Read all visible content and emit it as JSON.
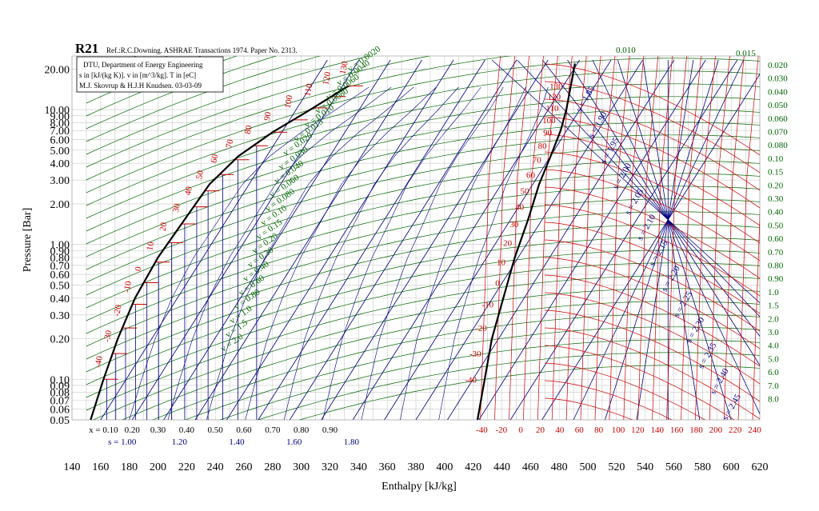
{
  "chart_data": {
    "type": "line",
    "title": "R21",
    "subtitle": "Ref.:R.C.Downing. ASHRAE Transactions 1974. Paper No. 2313.",
    "info_box": [
      "DTU, Department of Energy Engineering",
      "s in [kJ/(kg K)]. v in [m^3/kg]. T in [eC]",
      "M.J. Skovrup & H.J.H Knudsen. 03-03-09"
    ],
    "xlabel": "Enthalpy [kJ/kg]",
    "ylabel": "Pressure [Bar]",
    "xlim": [
      140,
      620
    ],
    "ylim": [
      0.05,
      25
    ],
    "y_scale": "log",
    "x_ticks": [
      140,
      160,
      180,
      200,
      220,
      240,
      260,
      280,
      300,
      320,
      340,
      360,
      380,
      400,
      420,
      440,
      460,
      480,
      500,
      520,
      540,
      560,
      580,
      600,
      620
    ],
    "y_ticks": [
      {
        "v": 20,
        "label": "20.00"
      },
      {
        "v": 10,
        "label": "10.00"
      },
      {
        "v": 9,
        "label": "9.00"
      },
      {
        "v": 8,
        "label": "8.00"
      },
      {
        "v": 7,
        "label": "7.00"
      },
      {
        "v": 6,
        "label": "6.00"
      },
      {
        "v": 5,
        "label": "5.00"
      },
      {
        "v": 4,
        "label": "4.00"
      },
      {
        "v": 3,
        "label": "3.00"
      },
      {
        "v": 2,
        "label": "2.00"
      },
      {
        "v": 1,
        "label": "1.00"
      },
      {
        "v": 0.9,
        "label": "0.90"
      },
      {
        "v": 0.8,
        "label": "0.80"
      },
      {
        "v": 0.7,
        "label": "0.70"
      },
      {
        "v": 0.6,
        "label": "0.60"
      },
      {
        "v": 0.5,
        "label": "0.50"
      },
      {
        "v": 0.4,
        "label": "0.40"
      },
      {
        "v": 0.3,
        "label": "0.30"
      },
      {
        "v": 0.2,
        "label": "0.20"
      },
      {
        "v": 0.1,
        "label": "0.10"
      },
      {
        "v": 0.09,
        "label": "0.09"
      },
      {
        "v": 0.08,
        "label": "0.08"
      },
      {
        "v": 0.07,
        "label": "0.07"
      },
      {
        "v": 0.06,
        "label": "0.06"
      },
      {
        "v": 0.05,
        "label": "0.05"
      }
    ],
    "saturation": {
      "liquid": [
        [
          153,
          0.05
        ],
        [
          162,
          0.1
        ],
        [
          172,
          0.2
        ],
        [
          184,
          0.4
        ],
        [
          200,
          0.8
        ],
        [
          218,
          1.5
        ],
        [
          236,
          2.8
        ],
        [
          256,
          4.5
        ],
        [
          280,
          6.8
        ],
        [
          305,
          9.8
        ],
        [
          333,
          15
        ]
      ],
      "vapor": [
        [
          423,
          0.05
        ],
        [
          428,
          0.1
        ],
        [
          433,
          0.2
        ],
        [
          441,
          0.4
        ],
        [
          449,
          0.8
        ],
        [
          458,
          1.5
        ],
        [
          466,
          2.8
        ],
        [
          474,
          4.5
        ],
        [
          481,
          7
        ],
        [
          485,
          10
        ],
        [
          491,
          22
        ]
      ]
    },
    "quality_lines": {
      "labels": [
        "x = 0.10",
        "0.20",
        "0.30",
        "0.40",
        "0.50",
        "0.60",
        "0.70",
        "0.80",
        "0.90"
      ],
      "values": [
        0.1,
        0.2,
        0.3,
        0.4,
        0.5,
        0.6,
        0.7,
        0.8,
        0.9
      ]
    },
    "isotherm_labels": {
      "liquid_side": [
        "-40",
        "-30",
        "-20",
        "-10",
        "0",
        "10",
        "20",
        "30",
        "40",
        "50",
        "60",
        "70",
        "80",
        "90",
        "100",
        "110",
        "120",
        "130"
      ],
      "vapor_side": [
        "-40",
        "-30",
        "-20",
        "-10",
        "0",
        "10",
        "20",
        "30",
        "40",
        "50",
        "60",
        "70",
        "80",
        "90",
        "100",
        "110",
        "120",
        "130"
      ],
      "bottom_axis": [
        "-40",
        "-20",
        "0",
        "20",
        "40",
        "60",
        "80",
        "100",
        "120",
        "140",
        "160",
        "180",
        "200",
        "220",
        "240"
      ]
    },
    "isentrope_labels": {
      "bottom": [
        "s = 1.00",
        "1.20",
        "1.40",
        "1.60",
        "1.80"
      ],
      "vapor_region": [
        "s = 1.85",
        "s = 1.90",
        "s = 1.95",
        "s = 2.00",
        "s = 2.05",
        "s = 2.10",
        "s = 2.15",
        "s = 2.20",
        "s = 2.25",
        "s = 2.30",
        "s = 2.35",
        "s = 2.40",
        "s = 2.45"
      ]
    },
    "isochore_labels": {
      "two_phase": [
        "v = 0.0020",
        "v = 0.0040",
        "v = 0.0060",
        "v = 0.0080",
        "v = 0.010",
        "v = 0.015",
        "v = 0.020",
        "v = 0.030",
        "v = 0.040",
        "v = 0.060",
        "v = 0.080",
        "v = 0.10",
        "v = 0.15",
        "v = 0.20",
        "v = 0.30",
        "v = 0.40",
        "v = 0.60",
        "v = 0.80",
        "v = 1.0",
        "v = 1.5",
        "v = 2.0"
      ],
      "right_axis": [
        "0.010",
        "0.015",
        "0.020",
        "0.030",
        "0.040",
        "0.050",
        "0.060",
        "0.070",
        "0.080",
        "0.10",
        "0.15",
        "0.20",
        "0.30",
        "0.40",
        "0.50",
        "0.60",
        "0.70",
        "0.80",
        "0.90",
        "1.0",
        "1.5",
        "2.0",
        "3.0",
        "4.0",
        "5.0",
        "6.0",
        "7.0",
        "8.0"
      ]
    },
    "colors": {
      "grid": "#c8c8c8",
      "saturation": "#000000",
      "isotherm": "#cc0000",
      "isentrope": "#000080",
      "isochore": "#006600",
      "quality": "#000080",
      "text": "#000000"
    },
    "grid": true
  }
}
